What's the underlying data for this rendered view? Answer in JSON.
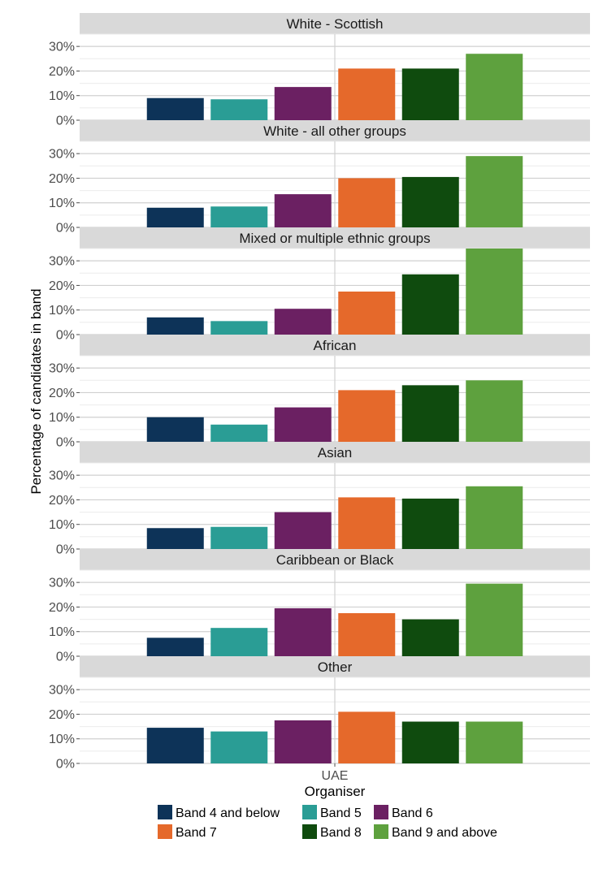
{
  "chart_data": {
    "type": "bar",
    "x_categories": [
      "UAE"
    ],
    "xlabel": "Organiser",
    "ylabel": "Percentage of candidates in band",
    "ylim": [
      0,
      35
    ],
    "yticks": [
      "0%",
      "10%",
      "20%",
      "30%"
    ],
    "grid": true,
    "legend_position": "bottom",
    "series": [
      {
        "name": "Band 4 and below",
        "color": "#0d3358"
      },
      {
        "name": "Band 5",
        "color": "#2a9d95"
      },
      {
        "name": "Band 6",
        "color": "#6b2062"
      },
      {
        "name": "Band 7",
        "color": "#e5692b"
      },
      {
        "name": "Band 8",
        "color": "#0f4b0e"
      },
      {
        "name": "Band 9 and above",
        "color": "#5ea13e"
      }
    ],
    "facets": [
      {
        "title": "White - Scottish",
        "values": [
          9,
          8.5,
          13.5,
          21,
          21,
          27
        ]
      },
      {
        "title": "White - all other groups",
        "values": [
          8,
          8.5,
          13.5,
          20,
          20.5,
          29
        ]
      },
      {
        "title": "Mixed or multiple ethnic groups",
        "values": [
          7,
          5.5,
          10.5,
          17.5,
          24.5,
          35
        ]
      },
      {
        "title": "African",
        "values": [
          10,
          7,
          14,
          21,
          23,
          25
        ]
      },
      {
        "title": "Asian",
        "values": [
          8.5,
          9,
          15,
          21,
          20.5,
          25.5
        ]
      },
      {
        "title": "Caribbean or Black",
        "values": [
          7.5,
          11.5,
          19.5,
          17.5,
          15,
          29.5
        ]
      },
      {
        "title": "Other",
        "values": [
          14.5,
          13,
          17.5,
          21,
          17,
          17
        ]
      }
    ]
  }
}
